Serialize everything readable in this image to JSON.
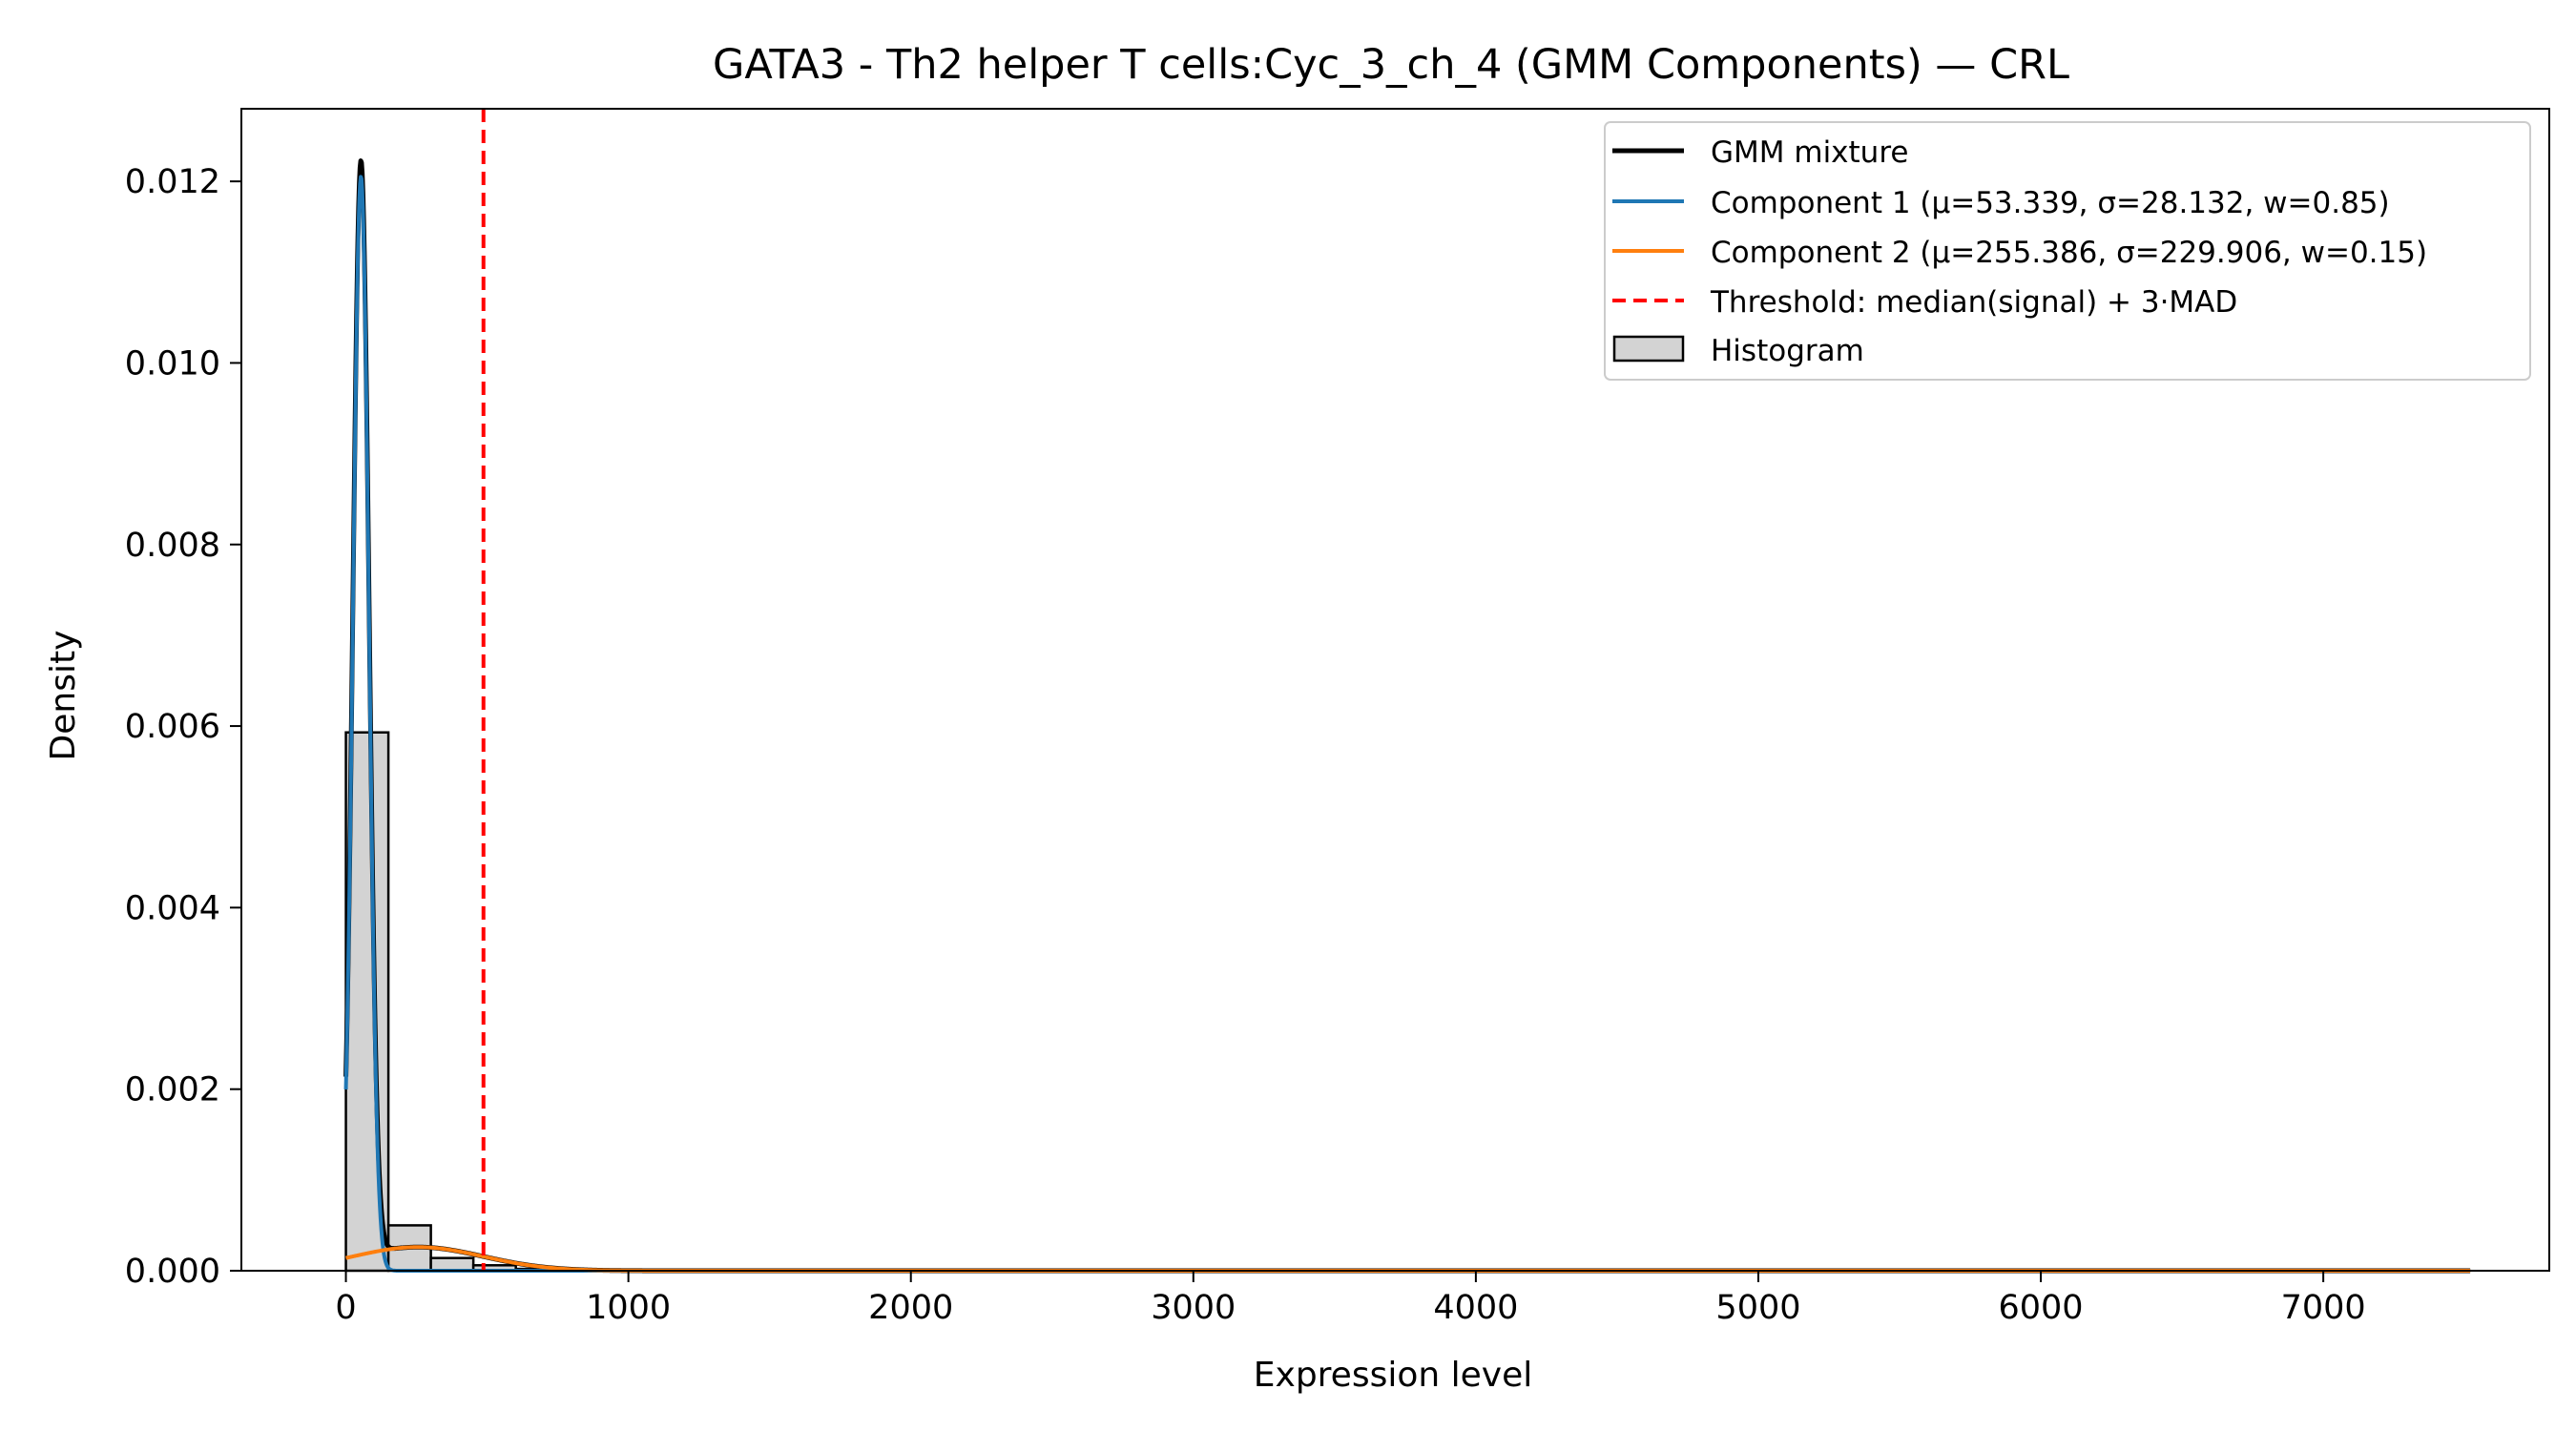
{
  "chart_data": {
    "type": "histogram",
    "title": "GATA3 - Th2 helper T cells:Cyc_3_ch_4 (GMM Components) — CRL",
    "xlabel": "Expression level",
    "ylabel": "Density",
    "xlim": [
      -370,
      7800
    ],
    "ylim": [
      0,
      0.0128
    ],
    "xticks": [
      0,
      1000,
      2000,
      3000,
      4000,
      5000,
      6000,
      7000
    ],
    "xtick_labels": [
      "0",
      "1000",
      "2000",
      "3000",
      "4000",
      "5000",
      "6000",
      "7000"
    ],
    "yticks": [
      0,
      0.002,
      0.004,
      0.006,
      0.008,
      0.01,
      0.012
    ],
    "ytick_labels": [
      "0.000",
      "0.002",
      "0.004",
      "0.006",
      "0.008",
      "0.010",
      "0.012"
    ],
    "x_data_range": [
      0,
      7520
    ],
    "histogram": {
      "bin_width": 150.4,
      "bins": [
        {
          "x0": 0,
          "x1": 150.4,
          "density": 0.00593
        },
        {
          "x0": 150.4,
          "x1": 300.8,
          "density": 0.0005
        },
        {
          "x0": 300.8,
          "x1": 451.2,
          "density": 0.00014
        },
        {
          "x0": 451.2,
          "x1": 601.6,
          "density": 6e-05
        },
        {
          "x0": 601.6,
          "x1": 752.0,
          "density": 2e-05
        }
      ]
    },
    "components": [
      {
        "label": "Component 1 (μ=53.339, σ=28.132, w=0.85)",
        "mu": 53.339,
        "sigma": 28.132,
        "w": 0.85,
        "color": "#1f77b4"
      },
      {
        "label": "Component 2 (μ=255.386, σ=229.906, w=0.15)",
        "mu": 255.386,
        "sigma": 229.906,
        "w": 0.15,
        "color": "#ff7f0e"
      }
    ],
    "mixture": {
      "label": "GMM mixture",
      "color": "#000000"
    },
    "threshold": {
      "label": "Threshold: median(signal) + 3·MAD",
      "x": 487,
      "color": "#ff0000"
    },
    "histogram_label": "Histogram",
    "legend_position": "upper right",
    "grid": false
  }
}
